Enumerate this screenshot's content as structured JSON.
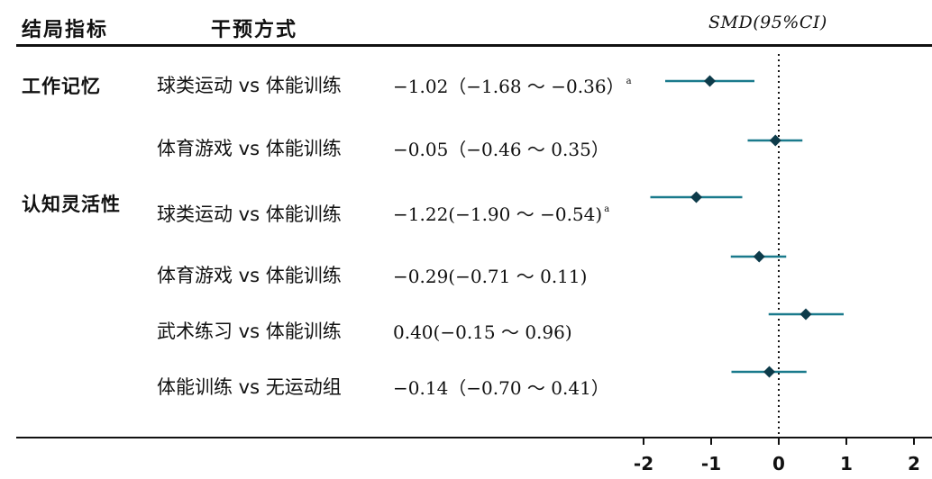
{
  "header": {
    "col_indicator": "结局指标",
    "col_intervention": "干预方式",
    "col_effect": "SMD(95%CI)"
  },
  "groups": [
    {
      "label": "工作记忆"
    },
    {
      "label": "认知灵活性"
    }
  ],
  "rows_text": [
    {
      "comparison": "球类运动 vs 体能训练",
      "effect_text": "−1.02（−1.68 ～ −0.36）",
      "mark": "a"
    },
    {
      "comparison": "体育游戏 vs 体能训练",
      "effect_text": "−0.05（−0.46 ～ 0.35）",
      "mark": ""
    },
    {
      "comparison": "球类运动 vs 体能训练",
      "effect_text": "−1.22(−1.90 ～ −0.54)",
      "mark": "a"
    },
    {
      "comparison": "体育游戏 vs 体能训练",
      "effect_text": "−0.29(−0.71 ～ 0.11)",
      "mark": ""
    },
    {
      "comparison": "武术练习 vs 体能训练",
      "effect_text": "0.40(−0.15 ～ 0.96)",
      "mark": ""
    },
    {
      "comparison": "体能训练 vs 无运动组",
      "effect_text": "−0.14（−0.70 ～ 0.41）",
      "mark": ""
    }
  ],
  "chart_data": {
    "type": "forest",
    "title": "",
    "xlabel": "SMD(95%CI)",
    "xlim": [
      -2,
      2
    ],
    "xticks": [
      -2,
      -1,
      0,
      1,
      2
    ],
    "reference_line": 0,
    "colors": {
      "ci_line": "#1a7a8c",
      "point": "#0d3b4a"
    },
    "rows": [
      {
        "group": "工作记忆",
        "label": "球类运动 vs 体能训练",
        "estimate": -1.02,
        "lower": -1.68,
        "upper": -0.36
      },
      {
        "group": "工作记忆",
        "label": "体育游戏 vs 体能训练",
        "estimate": -0.05,
        "lower": -0.46,
        "upper": 0.35
      },
      {
        "group": "认知灵活性",
        "label": "球类运动 vs 体能训练",
        "estimate": -1.22,
        "lower": -1.9,
        "upper": -0.54
      },
      {
        "group": "认知灵活性",
        "label": "体育游戏 vs 体能训练",
        "estimate": -0.29,
        "lower": -0.71,
        "upper": 0.11
      },
      {
        "group": "认知灵活性",
        "label": "武术练习 vs 体能训练",
        "estimate": 0.4,
        "lower": -0.15,
        "upper": 0.96
      },
      {
        "group": "认知灵活性",
        "label": "体能训练 vs 无运动组",
        "estimate": -0.14,
        "lower": -0.7,
        "upper": 0.41
      }
    ]
  }
}
